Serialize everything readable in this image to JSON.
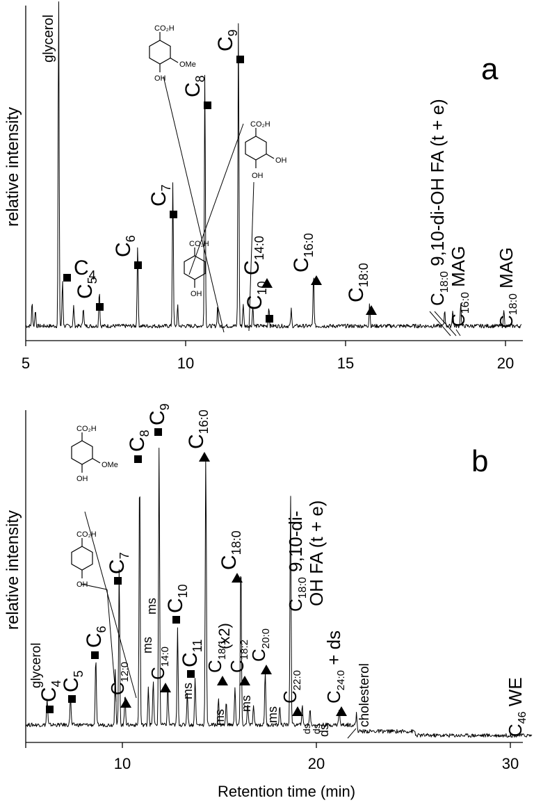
{
  "chart_data": [
    {
      "type": "line",
      "panel": "a",
      "ylabel": "relative intensity",
      "xlabel": "",
      "xlim": [
        5,
        20.5
      ],
      "xticks": [
        5,
        10,
        15,
        20
      ],
      "baseline": 0.04,
      "peaks": [
        {
          "rt": 5.2,
          "h": 0.07
        },
        {
          "rt": 5.3,
          "h": 0.05
        },
        {
          "rt": 6.03,
          "h": 1.0
        },
        {
          "rt": 6.15,
          "h": 0.14
        },
        {
          "rt": 6.5,
          "h": 0.06
        },
        {
          "rt": 6.8,
          "h": 0.06
        },
        {
          "rt": 7.3,
          "h": 0.11
        },
        {
          "rt": 8.5,
          "h": 0.25
        },
        {
          "rt": 9.6,
          "h": 0.44
        },
        {
          "rt": 9.75,
          "h": 0.06
        },
        {
          "rt": 10.6,
          "h": 0.77
        },
        {
          "rt": 11.0,
          "h": 0.06
        },
        {
          "rt": 11.65,
          "h": 0.92
        },
        {
          "rt": 11.8,
          "h": 0.07
        },
        {
          "rt": 12.1,
          "h": 0.06
        },
        {
          "rt": 12.6,
          "h": 0.06
        },
        {
          "rt": 13.3,
          "h": 0.05
        },
        {
          "rt": 14.0,
          "h": 0.16
        },
        {
          "rt": 15.75,
          "h": 0.07
        },
        {
          "rt": 18.1,
          "h": 0.05
        },
        {
          "rt": 18.35,
          "h": 0.05
        },
        {
          "rt": 18.6,
          "h": 0.07
        },
        {
          "rt": 19.95,
          "h": 0.05
        }
      ],
      "annotations": [
        {
          "id": "a-glycerol",
          "text": "glycerol",
          "rt": 6.03,
          "marker": "none"
        },
        {
          "id": "a-c4",
          "text": "C",
          "sub": "4",
          "rt": 6.15,
          "marker": "square"
        },
        {
          "id": "a-c5",
          "text": "C",
          "sub": "5",
          "rt": 7.3,
          "marker": "square"
        },
        {
          "id": "a-c6",
          "text": "C",
          "sub": "6",
          "rt": 8.5,
          "marker": "square"
        },
        {
          "id": "a-c7",
          "text": "C",
          "sub": "7",
          "rt": 9.6,
          "marker": "square"
        },
        {
          "id": "a-c8",
          "text": "C",
          "sub": "8",
          "rt": 10.6,
          "marker": "square"
        },
        {
          "id": "a-c9",
          "text": "C",
          "sub": "9",
          "rt": 11.65,
          "marker": "square"
        },
        {
          "id": "a-c10",
          "text": "C",
          "sub": "10",
          "rt": 12.6,
          "marker": "square"
        },
        {
          "id": "a-c140",
          "text": "C",
          "sub": "14:0",
          "rt": 12.4,
          "marker": "triangle"
        },
        {
          "id": "a-c160",
          "text": "C",
          "sub": "16:0",
          "rt": 14.0,
          "marker": "triangle"
        },
        {
          "id": "a-c180",
          "text": "C",
          "sub": "18:0",
          "rt": 15.75,
          "marker": "triangle"
        },
        {
          "id": "a-diohfa",
          "text": "C",
          "sub": "18:0",
          "tail": " 9,10-di-OH FA (t + e)",
          "rt": 18.2,
          "marker": "none"
        },
        {
          "id": "a-mag16",
          "text": "C",
          "sub": "16:0",
          "tail": " MAG",
          "rt": 18.6,
          "marker": "none"
        },
        {
          "id": "a-mag18",
          "text": "C",
          "sub": "18:0",
          "tail": " MAG",
          "rt": 19.95,
          "marker": "none"
        }
      ],
      "structures": [
        {
          "id": "a-vanillic",
          "groups": [
            "CO₂H",
            "OMe",
            "OH"
          ]
        },
        {
          "id": "a-protocatechuic",
          "groups": [
            "CO₂H",
            "OH",
            "OH"
          ]
        },
        {
          "id": "a-hydroxybenzoic",
          "groups": [
            "CO₂H",
            "OH"
          ]
        }
      ],
      "panel_label": "a"
    },
    {
      "type": "line",
      "panel": "b",
      "ylabel": "relative intensity",
      "xlabel": "Retention time (min)",
      "xlim": [
        5,
        31
      ],
      "xticks": [
        10,
        20,
        30
      ],
      "baseline": 0.05,
      "peaks": [
        {
          "rt": 6.1,
          "h": 0.08
        },
        {
          "rt": 7.3,
          "h": 0.09
        },
        {
          "rt": 8.6,
          "h": 0.21
        },
        {
          "rt": 9.6,
          "h": 0.18
        },
        {
          "rt": 9.8,
          "h": 0.48
        },
        {
          "rt": 10.1,
          "h": 0.1
        },
        {
          "rt": 10.85,
          "h": 0.8
        },
        {
          "rt": 11.3,
          "h": 0.12
        },
        {
          "rt": 11.55,
          "h": 0.14
        },
        {
          "rt": 11.85,
          "h": 0.86
        },
        {
          "rt": 12.3,
          "h": 0.12
        },
        {
          "rt": 12.8,
          "h": 0.3
        },
        {
          "rt": 13.3,
          "h": 0.1
        },
        {
          "rt": 13.7,
          "h": 0.15
        },
        {
          "rt": 14.25,
          "h": 0.84
        },
        {
          "rt": 14.9,
          "h": 0.08
        },
        {
          "rt": 15.3,
          "h": 0.07
        },
        {
          "rt": 15.75,
          "h": 0.12
        },
        {
          "rt": 16.05,
          "h": 0.52
        },
        {
          "rt": 16.4,
          "h": 0.07
        },
        {
          "rt": 16.7,
          "h": 0.06
        },
        {
          "rt": 17.3,
          "h": 0.17
        },
        {
          "rt": 18.05,
          "h": 0.06
        },
        {
          "rt": 18.6,
          "h": 0.72
        },
        {
          "rt": 19.2,
          "h": 0.06
        },
        {
          "rt": 19.6,
          "h": 0.05
        },
        {
          "rt": 21.1,
          "h": 0.05
        },
        {
          "rt": 22.0,
          "h": 0.04
        }
      ],
      "annotations": [
        {
          "id": "b-glycerol",
          "text": "glycerol",
          "rt": 6.1,
          "marker": "none"
        },
        {
          "id": "b-c4",
          "text": "C",
          "sub": "4",
          "rt": 6.1,
          "marker": "square"
        },
        {
          "id": "b-c5",
          "text": "C",
          "sub": "5",
          "rt": 7.3,
          "marker": "square"
        },
        {
          "id": "b-c6",
          "text": "C",
          "sub": "6",
          "rt": 8.6,
          "marker": "square"
        },
        {
          "id": "b-c7",
          "text": "C",
          "sub": "7",
          "rt": 9.8,
          "marker": "square"
        },
        {
          "id": "b-c8",
          "text": "C",
          "sub": "8",
          "rt": 10.85,
          "marker": "square"
        },
        {
          "id": "b-c9",
          "text": "C",
          "sub": "9",
          "rt": 11.85,
          "marker": "square"
        },
        {
          "id": "b-c10",
          "text": "C",
          "sub": "10",
          "rt": 12.8,
          "marker": "square"
        },
        {
          "id": "b-c11",
          "text": "C",
          "sub": "11",
          "rt": 13.7,
          "marker": "square"
        },
        {
          "id": "b-c120",
          "text": "C",
          "sub": "12:0",
          "rt": 10.1,
          "marker": "triangle"
        },
        {
          "id": "b-c140",
          "text": "C",
          "sub": "14:0",
          "rt": 12.3,
          "marker": "triangle"
        },
        {
          "id": "b-c160",
          "text": "C",
          "sub": "16:0",
          "rt": 14.25,
          "marker": "triangle"
        },
        {
          "id": "b-c180",
          "text": "C",
          "sub": "18:0",
          "rt": 16.05,
          "marker": "triangle"
        },
        {
          "id": "b-c181",
          "text": "C",
          "sub": "18:1",
          "rt": 15.3,
          "marker": "triangle"
        },
        {
          "id": "b-c182",
          "text": "C",
          "sub": "18:2",
          "rt": 16.4,
          "marker": "triangle"
        },
        {
          "id": "b-c200",
          "text": "C",
          "sub": "20:0",
          "rt": 17.3,
          "marker": "triangle"
        },
        {
          "id": "b-c220",
          "text": "C",
          "sub": "22:0",
          "rt": 19.2,
          "marker": "triangle"
        },
        {
          "id": "b-c240",
          "text": "C",
          "sub": "24:0",
          "tail": " + ds",
          "rt": 21.2,
          "marker": "triangle"
        },
        {
          "id": "b-diohfa",
          "text": "C",
          "sub": "18:0",
          "tail": " 9,10-di-OH FA (t + e)",
          "rt": 18.6,
          "marker": "none"
        },
        {
          "id": "b-cholesterol",
          "text": "cholesterol",
          "rt": 22.0,
          "marker": "none"
        },
        {
          "id": "b-we",
          "text": "C",
          "sub": "46",
          "tail": " WE",
          "rt": 29.9,
          "marker": "none"
        }
      ],
      "misc_labels": {
        "ms": "ms",
        "ds": "ds",
        "x2": "(x2)",
        "di_line1": " 9,10-di-",
        "di_line2": "OH FA (t + e)"
      },
      "structures": [
        {
          "id": "b-vanillic",
          "groups": [
            "CO₂H",
            "OMe",
            "OH"
          ]
        },
        {
          "id": "b-hydroxybenzoic",
          "groups": [
            "CO₂H",
            "OH"
          ]
        }
      ],
      "panel_label": "b"
    }
  ]
}
